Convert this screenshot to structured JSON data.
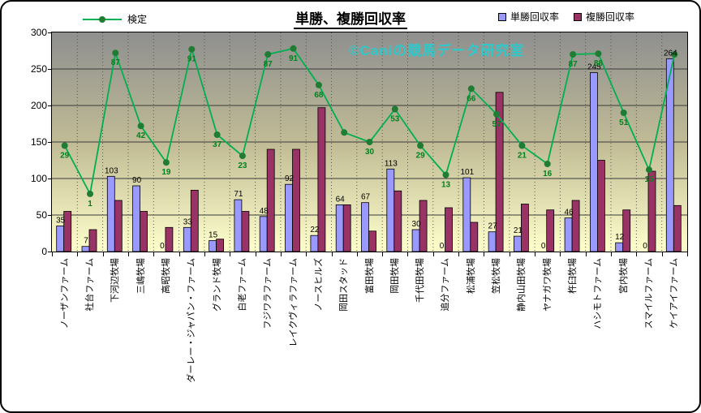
{
  "watermark": "©Caniの競馬データ研究室",
  "chart_data": {
    "type": "bar+line",
    "title": "単勝、複勝回収率",
    "ylim": [
      0,
      300
    ],
    "yticks": [
      0,
      50,
      100,
      150,
      200,
      250,
      300
    ],
    "grid": true,
    "legend_position": "top",
    "categories": [
      "ノーザンファーム",
      "社台ファーム",
      "下河辺牧場",
      "三嶋牧場",
      "高昭牧場",
      "ダーレー・ジャパン・ファーム",
      "グランド牧場",
      "白老ファーム",
      "フジワラファーム",
      "レイクヴィラファーム",
      "ノースヒルズ",
      "岡田スタッド",
      "富田牧場",
      "岡田牧場",
      "千代田牧場",
      "追分ファーム",
      "松浦牧場",
      "笠松牧場",
      "静内山田牧場",
      "ヤナガワ牧場",
      "杵臼牧場",
      "ハシモトファーム",
      "宮内牧場",
      "スマイルファーム",
      "ケイアイファーム"
    ],
    "series": [
      {
        "name": "単勝回収率",
        "type": "bar",
        "color": "#9999ff",
        "values": [
          35,
          7,
          103,
          90,
          0,
          33,
          15,
          71,
          48,
          92,
          22,
          64,
          67,
          113,
          30,
          0,
          101,
          27,
          21,
          0,
          46,
          245,
          12,
          0,
          264
        ]
      },
      {
        "name": "複勝回収率",
        "type": "bar",
        "color": "#993366",
        "values": [
          55,
          30,
          70,
          55,
          33,
          84,
          17,
          55,
          140,
          140,
          197,
          64,
          28,
          83,
          70,
          60,
          40,
          218,
          65,
          57,
          70,
          125,
          57,
          110,
          63
        ]
      }
    ],
    "line": {
      "name": "検定",
      "color": "#00b050",
      "marker_color": "#1e7d32",
      "labels": [
        "29",
        "1",
        "87",
        "42",
        "19",
        "91",
        "37",
        "23",
        "87",
        "91",
        "68",
        "",
        "30",
        "53",
        "29",
        "13",
        "66",
        "57",
        "21",
        "16",
        "87",
        "88",
        "51",
        "15",
        ""
      ],
      "plotted_values": [
        145,
        79,
        272,
        172,
        122,
        277,
        160,
        131,
        270,
        278,
        228,
        163,
        150,
        195,
        145,
        105,
        223,
        188,
        145,
        120,
        270,
        271,
        190,
        112,
        270
      ]
    }
  }
}
